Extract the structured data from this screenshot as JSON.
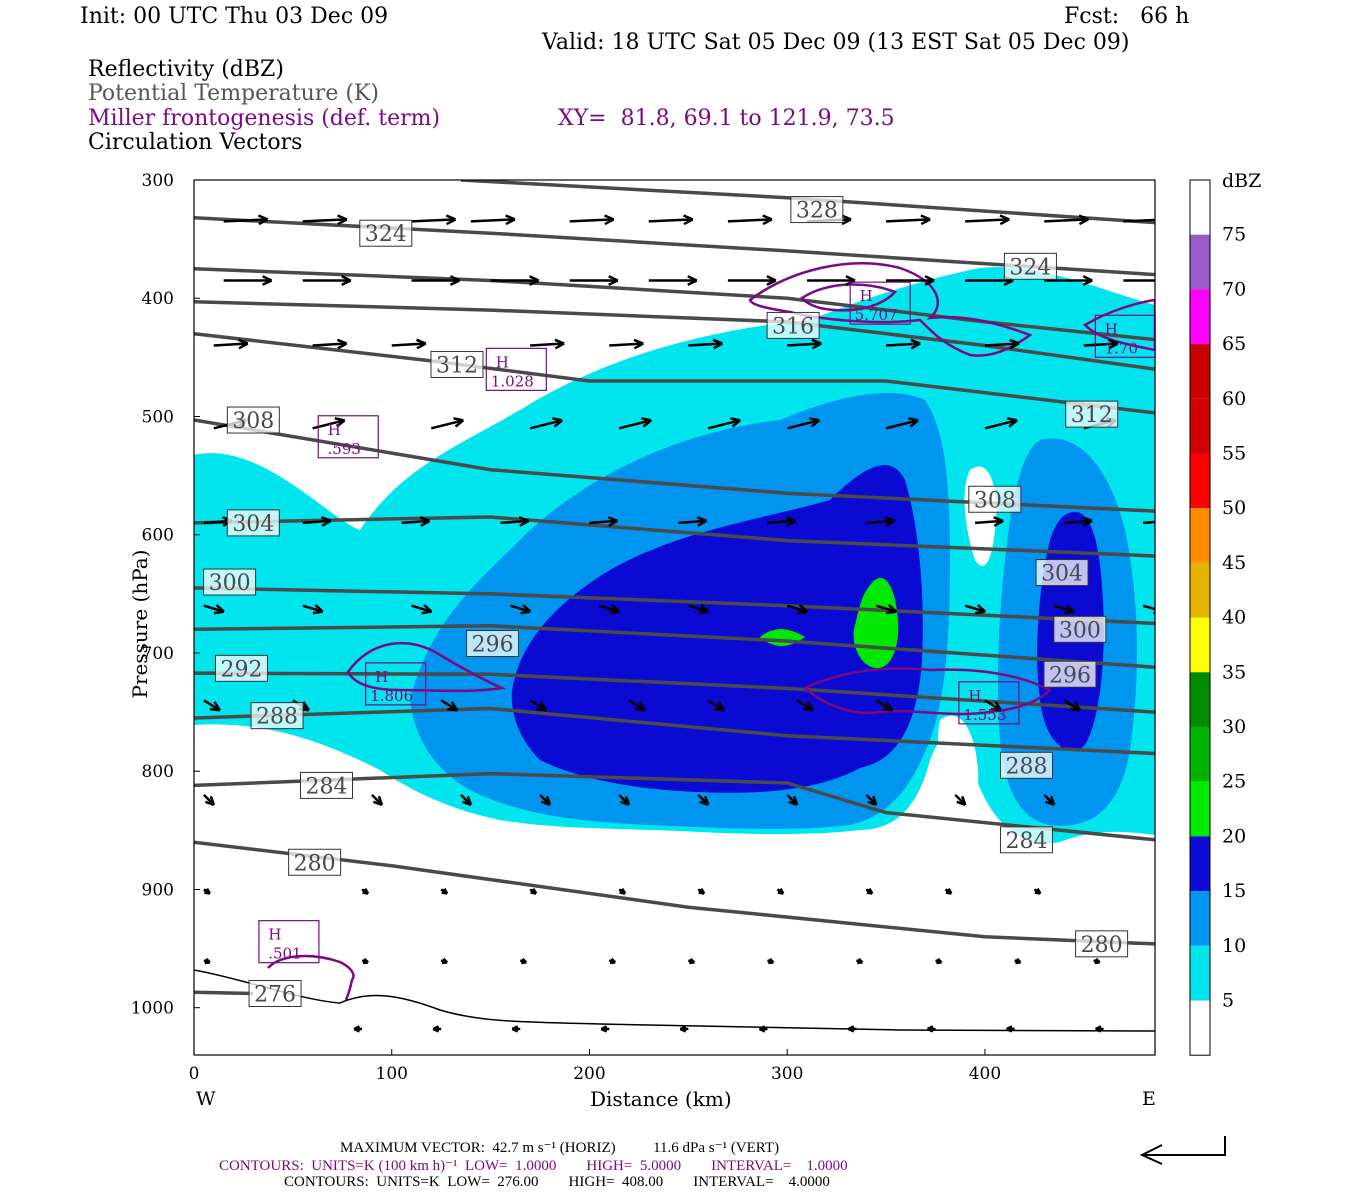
{
  "header": {
    "init": "Init: 00 UTC Thu 03 Dec 09",
    "fcst": "Fcst:   66 h",
    "valid": "Valid: 18 UTC Sat 05 Dec 09 (13 EST Sat 05 Dec 09)"
  },
  "legend_lines": {
    "reflectivity": "Reflectivity (dBZ)",
    "theta": "Potential Temperature (K)",
    "miller": "Miller frontogenesis (def. term)",
    "xy": "XY=  81.8, 69.1 to 121.9, 73.5",
    "vectors": "Circulation Vectors"
  },
  "footer": {
    "max_vector": "MAXIMUM VECTOR:  42.7 m s⁻¹ (HORIZ)          11.6 dPa s⁻¹ (VERT)",
    "contours_purple": "CONTOURS:  UNITS=K (100 km h)⁻¹  LOW=  1.0000        HIGH=  5.0000        INTERVAL=    1.0000",
    "contours_black": "CONTOURS:  UNITS=K  LOW=  276.00        HIGH=  408.00        INTERVAL=    4.0000"
  },
  "colors": {
    "cyan": "#00e5ee",
    "lightblue": "#0096f0",
    "blue": "#0a0ad2",
    "green": "#00e800",
    "theta_line": "#4a4a4a",
    "purple": "#7a0a84"
  },
  "chart_data": {
    "type": "cross-section",
    "xlabel": "Distance (km)",
    "ylabel": "Pressure (hPa)",
    "xlim": [
      0,
      486
    ],
    "ylim": [
      300,
      1040
    ],
    "x_ticks": [
      "0",
      "100",
      "200",
      "300",
      "400"
    ],
    "x_tick_values": [
      0,
      100,
      200,
      300,
      400
    ],
    "y_ticks": [
      "300",
      "400",
      "500",
      "600",
      "700",
      "800",
      "900",
      "1000"
    ],
    "y_tick_values": [
      300,
      400,
      500,
      600,
      700,
      800,
      900,
      1000
    ],
    "left_end": "W",
    "right_end": "E",
    "colorbar": {
      "unit": "dBZ",
      "labels": [
        "75",
        "70",
        "65",
        "60",
        "55",
        "50",
        "45",
        "40",
        "35",
        "30",
        "25",
        "20",
        "15",
        "10",
        "5"
      ],
      "colors": [
        "#9a5ac8",
        "#ff00ff",
        "#c80000",
        "#d20000",
        "#ff0000",
        "#ff8c00",
        "#e6b400",
        "#ffff00",
        "#008c00",
        "#00b400",
        "#00e800",
        "#0a0ad2",
        "#0096f0",
        "#00e5ee",
        "#ffffff"
      ]
    },
    "theta_labels": [
      {
        "text": "328",
        "x": 315,
        "p": 325
      },
      {
        "text": "324",
        "x": 97,
        "p": 345
      },
      {
        "text": "324",
        "x": 423,
        "p": 373
      },
      {
        "text": "316",
        "x": 303,
        "p": 423
      },
      {
        "text": "312",
        "x": 133,
        "p": 456
      },
      {
        "text": "312",
        "x": 454,
        "p": 498
      },
      {
        "text": "308",
        "x": 30,
        "p": 503
      },
      {
        "text": "308",
        "x": 405,
        "p": 570
      },
      {
        "text": "304",
        "x": 30,
        "p": 590
      },
      {
        "text": "304",
        "x": 439,
        "p": 632
      },
      {
        "text": "300",
        "x": 18,
        "p": 640
      },
      {
        "text": "300",
        "x": 448,
        "p": 680
      },
      {
        "text": "296",
        "x": 151,
        "p": 692
      },
      {
        "text": "296",
        "x": 443,
        "p": 718
      },
      {
        "text": "292",
        "x": 24,
        "p": 713
      },
      {
        "text": "288",
        "x": 42,
        "p": 753
      },
      {
        "text": "288",
        "x": 421,
        "p": 795
      },
      {
        "text": "284",
        "x": 67,
        "p": 812
      },
      {
        "text": "284",
        "x": 421,
        "p": 858
      },
      {
        "text": "280",
        "x": 61,
        "p": 877
      },
      {
        "text": "280",
        "x": 459,
        "p": 946
      },
      {
        "text": "276",
        "x": 41,
        "p": 988
      }
    ],
    "frontogenesis_maxima": [
      {
        "label": "H",
        "value": "5.707",
        "x": 347,
        "p": 405
      },
      {
        "label": "H",
        "value": "1.70",
        "x": 471,
        "p": 433
      },
      {
        "label": "H",
        "value": "1.028",
        "x": 163,
        "p": 461
      },
      {
        "label": "H",
        "value": ".593",
        "x": 78,
        "p": 518
      },
      {
        "label": "H",
        "value": "1.806",
        "x": 102,
        "p": 727
      },
      {
        "label": "H",
        "value": "1.553",
        "x": 402,
        "p": 743
      },
      {
        "label": "H",
        "value": ".501",
        "x": 48,
        "p": 945
      }
    ]
  }
}
